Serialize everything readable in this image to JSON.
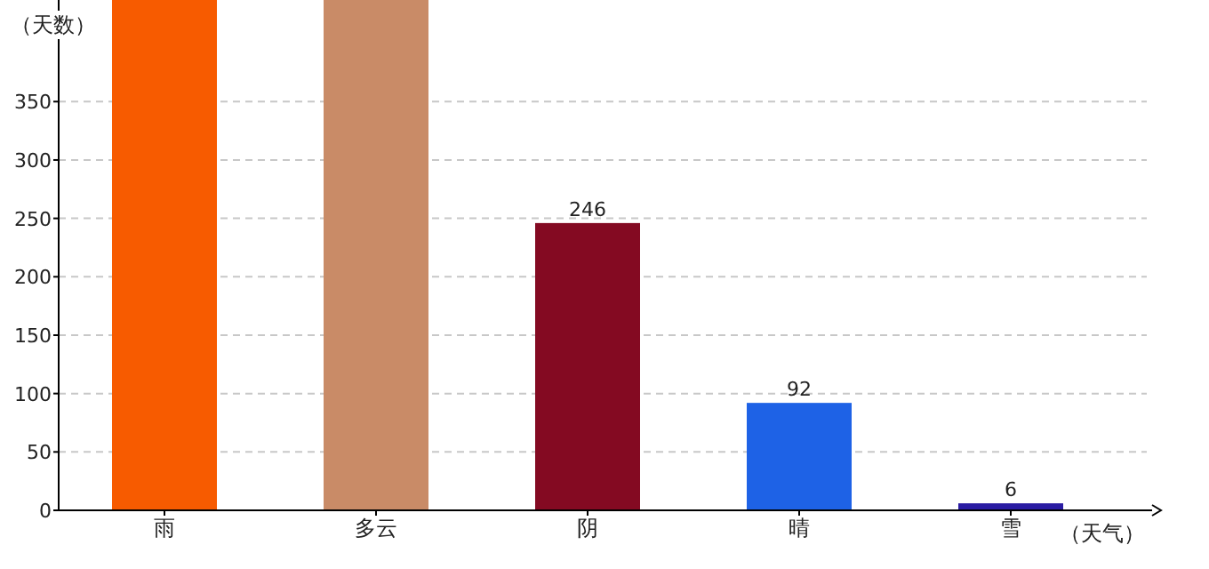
{
  "chart_data": {
    "type": "bar",
    "xlabel": "（天气）",
    "ylabel": "（天数）",
    "categories": [
      "雨",
      "多云",
      "阴",
      "晴",
      "雪"
    ],
    "values": [
      437,
      437,
      246,
      92,
      6
    ],
    "colors": [
      "#f75b00",
      "#c98b67",
      "#840a22",
      "#1e62e6",
      "#2a1ca3"
    ],
    "value_labels": [
      null,
      null,
      "246",
      "92",
      "6"
    ],
    "ylim": [
      0,
      437
    ],
    "yticks": [
      0,
      50,
      100,
      150,
      200,
      250,
      300,
      350
    ],
    "grid": "y"
  }
}
